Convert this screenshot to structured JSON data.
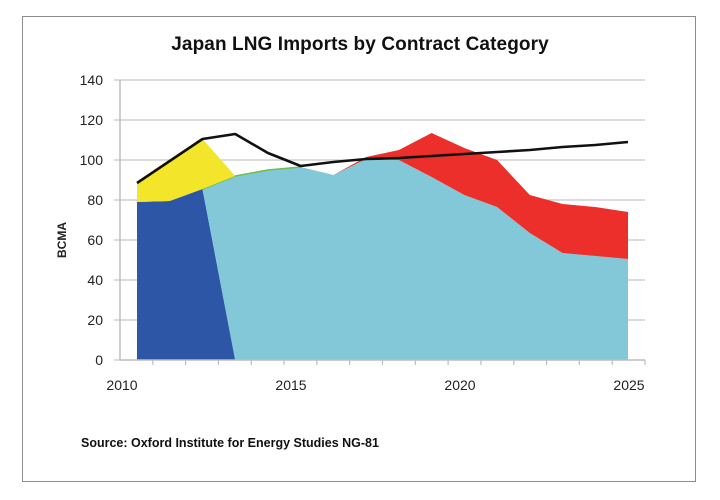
{
  "chart_data": {
    "type": "area",
    "stacked": true,
    "title": "Japan LNG Imports by Contract Category",
    "xlabel": "",
    "ylabel": "BCMA",
    "ylim": [
      0,
      140
    ],
    "yticks": [
      0,
      20,
      40,
      60,
      80,
      100,
      120,
      140
    ],
    "xlim": [
      2010,
      2025
    ],
    "xtick_labels": [
      "2010",
      "2015",
      "2020",
      "2025"
    ],
    "grid": "horizontal",
    "legend": "none",
    "x": [
      2010,
      2011,
      2012,
      2013,
      2014,
      2015,
      2016,
      2017,
      2018,
      2019,
      2020,
      2021,
      2022,
      2023,
      2024,
      2025
    ],
    "series": [
      {
        "name": "Dark blue category",
        "color": "#2e56a6",
        "kind": "area",
        "values": [
          79,
          79.5,
          85.5,
          0,
          0,
          0,
          0,
          0,
          0,
          0,
          0,
          0,
          0,
          0,
          0,
          0
        ]
      },
      {
        "name": "Light blue category",
        "color": "#83c8d8",
        "kind": "area",
        "values": [
          0,
          0,
          0,
          92,
          95,
          96.5,
          92.5,
          100.5,
          100,
          91.5,
          82.5,
          76.5,
          63.5,
          53.5,
          52,
          50.5
        ]
      },
      {
        "name": "Yellow category",
        "color": "#f2e52a",
        "kind": "area",
        "values": [
          9.5,
          20,
          25,
          0,
          0,
          0,
          0,
          0,
          0,
          0,
          0,
          0,
          0,
          0,
          0,
          0
        ]
      },
      {
        "name": "Red category",
        "color": "#ec2f2a",
        "kind": "area",
        "values": [
          0,
          0,
          0,
          0,
          0,
          0,
          0,
          1,
          5,
          22,
          23.5,
          23.5,
          19,
          24.5,
          24.5,
          23.5
        ]
      },
      {
        "name": "Total demand",
        "color": "#111111",
        "kind": "line",
        "values": [
          88.5,
          99.5,
          110.5,
          113,
          103.5,
          97,
          99,
          100.5,
          101,
          102,
          103,
          104,
          105,
          106.5,
          107.5,
          109
        ]
      }
    ],
    "source": "Source: Oxford Institute for Energy Studies NG-81"
  }
}
